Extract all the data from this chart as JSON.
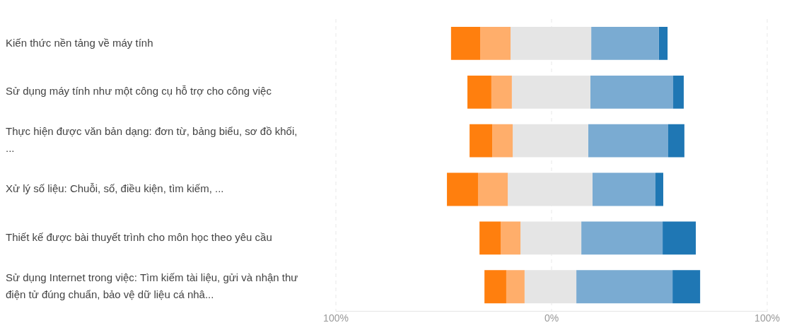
{
  "chart_data": {
    "type": "bar",
    "orientation": "horizontal",
    "categories": [
      "Kiến thức nền tảng về máy tính",
      "Sử dụng máy tính như một công cụ hỗ trợ cho công việc",
      "Thực hiện được văn bản dạng: đơn từ, bảng biểu, sơ đồ khối, ...",
      "Xử lý số liệu: Chuỗi, số, điều kiện, tìm kiếm, ...",
      "Thiết kế được bài thuyết trình cho môn học theo yêu cầu",
      "Sử dụng Internet trong việc: Tìm kiếm tài liệu, gửi và nhận thư điện tử đúng chuẩn, bảo vệ dữ liệu cá nhâ..."
    ],
    "series": [
      {
        "color": "#ff7f0e",
        "base": [
          -46.6,
          -39.0,
          -38.0,
          -48.5,
          -33.4,
          -31.1
        ],
        "values": [
          13.5,
          11.1,
          10.5,
          14.4,
          9.8,
          10.1
        ]
      },
      {
        "color": "#ffae6b",
        "base": [
          -33.1,
          -27.9,
          -27.5,
          -34.1,
          -23.6,
          -21.0
        ],
        "values": [
          14.1,
          9.5,
          9.5,
          13.8,
          9.2,
          8.5
        ]
      },
      {
        "color": "#e5e5e5",
        "base": [
          -19.0,
          -18.4,
          -18.0,
          -20.3,
          -14.4,
          -12.5
        ],
        "values": [
          37.4,
          36.4,
          35.0,
          39.3,
          28.2,
          24.0
        ]
      },
      {
        "color": "#7aabd2",
        "base": [
          18.4,
          18.0,
          17.0,
          19.0,
          13.8,
          11.5
        ],
        "values": [
          31.4,
          38.4,
          37.1,
          29.2,
          37.7,
          44.6
        ]
      },
      {
        "color": "#1f77b4",
        "base": [
          49.8,
          56.4,
          54.1,
          48.2,
          51.5,
          56.1
        ],
        "values": [
          4.0,
          4.9,
          7.5,
          3.6,
          15.4,
          12.8
        ]
      }
    ],
    "xlim": [
      -100,
      100
    ],
    "xticks": [
      {
        "value": -100,
        "label": "100%"
      },
      {
        "value": 0,
        "label": "0%"
      },
      {
        "value": 100,
        "label": "100%"
      }
    ],
    "grid": "x"
  }
}
